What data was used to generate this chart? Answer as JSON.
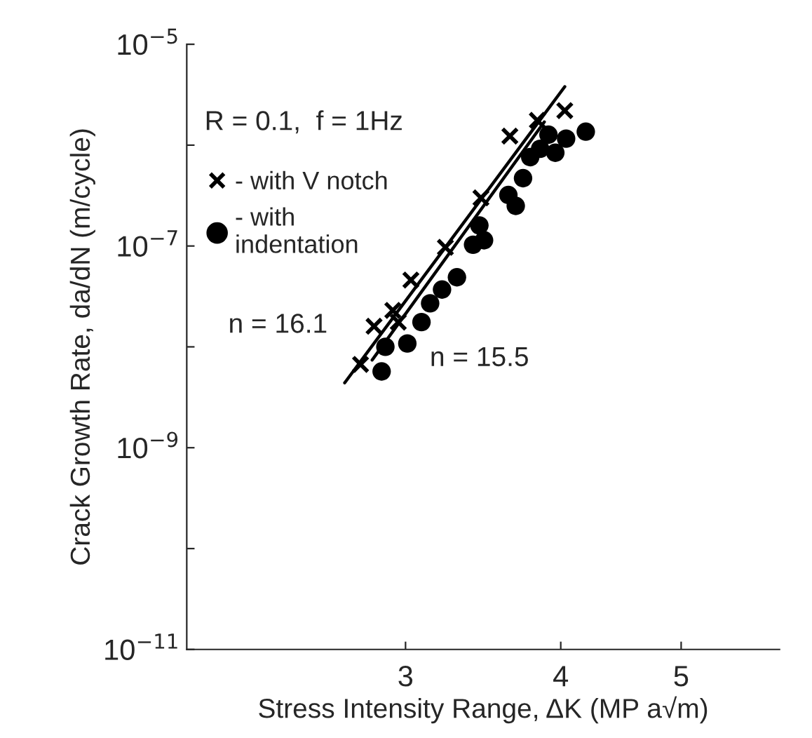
{
  "chart_data": {
    "type": "scatter",
    "xlabel": "Stress Intensity Range, ΔK (MP a√m)",
    "ylabel": "Crack Growth Rate, da/dN (m/cycle)",
    "log": "xy",
    "grid": false,
    "legend": "top left",
    "xlim": [
      2,
      6
    ],
    "xticks": [
      3,
      4,
      5
    ],
    "ylim": [
      1e-11,
      1e-05
    ],
    "yticks": [
      {
        "value": 1e-11,
        "label": "10$^{−11}$"
      },
      {
        "value": 1e-10,
        "label": null
      },
      {
        "value": 1e-09,
        "label": "10$^{−9}$"
      },
      {
        "value": 1e-08,
        "label": null
      },
      {
        "value": 1e-07,
        "label": "10$^{−7}$"
      },
      {
        "value": 1e-06,
        "label": null
      },
      {
        "value": 1e-05,
        "label": "10$^{−5}$"
      }
    ],
    "annotations": [
      "R = 0.1,  f = 1Hz",
      "n = 16.1",
      "n = 15.5"
    ],
    "series": [
      {
        "name": "- with V notch",
        "marker": "cross",
        "color": "#000000",
        "x": [
          2.76,
          2.83,
          2.93,
          2.96,
          3.03,
          3.23,
          3.45,
          3.64,
          3.83,
          4.03
        ],
        "values": [
          6.7e-09,
          1.6e-08,
          2.3e-08,
          1.76e-08,
          4.6e-08,
          9.7e-08,
          3e-07,
          1.23e-06,
          1.76e-06,
          2.2e-06
        ]
      },
      {
        "name": "- with\nindentation",
        "marker": "circle",
        "color": "#000000",
        "x": [
          2.87,
          2.89,
          3.01,
          3.09,
          3.14,
          3.21,
          3.3,
          3.4,
          3.47,
          3.44,
          3.63,
          3.68,
          3.73,
          3.78,
          3.85,
          3.96,
          3.91,
          4.04,
          4.19
        ],
        "values": [
          5.7e-09,
          1e-08,
          1.08e-08,
          1.76e-08,
          2.7e-08,
          3.7e-08,
          4.9e-08,
          1.03e-07,
          1.14e-07,
          1.6e-07,
          3.2e-07,
          2.5e-07,
          4.7e-07,
          7.6e-07,
          9.2e-07,
          8.4e-07,
          1.27e-06,
          1.16e-06,
          1.36e-06
        ]
      },
      {
        "type": "line",
        "marker": "none",
        "line_style": "solid",
        "color": "#000000",
        "x": [
          2.68,
          4.03
        ],
        "values": [
          4.4e-09,
          3.8e-06
        ]
      },
      {
        "type": "line",
        "marker": "none",
        "line_style": "solid",
        "color": "#000000",
        "x": [
          2.82,
          3.88
        ],
        "values": [
          7.4e-09,
          1.7e-06
        ]
      }
    ]
  }
}
